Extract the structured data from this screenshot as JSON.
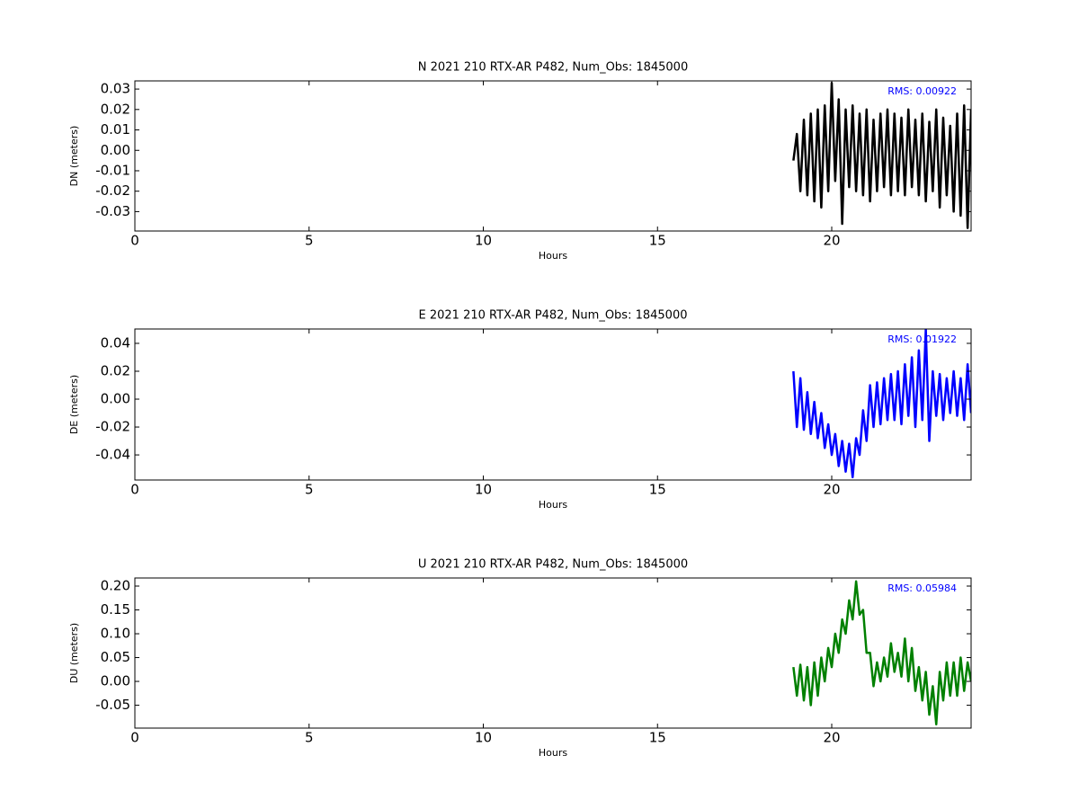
{
  "chart_data": [
    {
      "type": "line",
      "title": "N 2021 210 RTX-AR  P482, Num_Obs: 1845000",
      "x_label": "Hours",
      "y_label": "DN (meters)",
      "annotation": "RMS:  0.00922",
      "annotation_color": "#0000ff",
      "color": "#000000",
      "xlim": [
        0,
        24
      ],
      "xticks": [
        0,
        5,
        10,
        15,
        20
      ],
      "ylim": [
        -0.0395,
        0.034
      ],
      "yticks": [
        -0.03,
        -0.02,
        -0.01,
        {
          "value": 0,
          "label": "0.00"
        },
        0.01,
        0.02,
        0.03
      ],
      "x": [
        18.9,
        19.0,
        19.1,
        19.2,
        19.3,
        19.4,
        19.5,
        19.6,
        19.7,
        19.8,
        19.9,
        20.0,
        20.1,
        20.2,
        20.3,
        20.4,
        20.5,
        20.6,
        20.7,
        20.8,
        20.9,
        21.0,
        21.1,
        21.2,
        21.3,
        21.4,
        21.5,
        21.6,
        21.7,
        21.8,
        21.9,
        22.0,
        22.1,
        22.2,
        22.3,
        22.4,
        22.5,
        22.6,
        22.7,
        22.8,
        22.9,
        23.0,
        23.1,
        23.2,
        23.3,
        23.4,
        23.5,
        23.6,
        23.7,
        23.8,
        23.9,
        24.0
      ],
      "values": [
        -0.005,
        0.008,
        -0.02,
        0.015,
        -0.022,
        0.018,
        -0.025,
        0.02,
        -0.028,
        0.022,
        -0.02,
        0.033,
        -0.015,
        0.025,
        -0.036,
        0.02,
        -0.018,
        0.022,
        -0.02,
        0.018,
        -0.022,
        0.02,
        -0.025,
        0.015,
        -0.02,
        0.018,
        -0.018,
        0.02,
        -0.022,
        0.018,
        -0.02,
        0.016,
        -0.022,
        0.02,
        -0.018,
        0.015,
        -0.022,
        0.018,
        -0.025,
        0.014,
        -0.02,
        0.02,
        -0.028,
        0.016,
        -0.022,
        0.012,
        -0.03,
        0.018,
        -0.032,
        0.022,
        -0.038,
        0.02
      ]
    },
    {
      "type": "line",
      "title": "E 2021 210 RTX-AR  P482, Num_Obs: 1845000",
      "x_label": "Hours",
      "y_label": "DE (meters)",
      "annotation": "RMS:  0.01922",
      "annotation_color": "#0000ff",
      "color": "#0000ff",
      "xlim": [
        0,
        24
      ],
      "xticks": [
        0,
        5,
        10,
        15,
        20
      ],
      "ylim": [
        -0.058,
        0.0503
      ],
      "yticks": [
        -0.04,
        -0.02,
        {
          "value": 0,
          "label": "0.00"
        },
        0.02,
        0.04
      ],
      "x": [
        18.9,
        19.0,
        19.1,
        19.2,
        19.3,
        19.4,
        19.5,
        19.6,
        19.7,
        19.8,
        19.9,
        20.0,
        20.1,
        20.2,
        20.3,
        20.4,
        20.5,
        20.6,
        20.7,
        20.8,
        20.9,
        21.0,
        21.1,
        21.2,
        21.3,
        21.4,
        21.5,
        21.6,
        21.7,
        21.8,
        21.9,
        22.0,
        22.1,
        22.2,
        22.3,
        22.4,
        22.5,
        22.6,
        22.7,
        22.8,
        22.9,
        23.0,
        23.1,
        23.2,
        23.3,
        23.4,
        23.5,
        23.6,
        23.7,
        23.8,
        23.9,
        24.0
      ],
      "values": [
        0.02,
        -0.02,
        0.015,
        -0.022,
        0.005,
        -0.025,
        -0.002,
        -0.028,
        -0.01,
        -0.035,
        -0.018,
        -0.04,
        -0.025,
        -0.048,
        -0.03,
        -0.052,
        -0.032,
        -0.056,
        -0.028,
        -0.04,
        -0.008,
        -0.03,
        0.01,
        -0.02,
        0.012,
        -0.018,
        0.015,
        -0.015,
        0.018,
        -0.015,
        0.02,
        -0.018,
        0.025,
        -0.012,
        0.03,
        -0.02,
        0.035,
        -0.015,
        0.05,
        -0.03,
        0.02,
        -0.012,
        0.018,
        -0.015,
        0.015,
        -0.01,
        0.02,
        -0.012,
        0.015,
        -0.015,
        0.025,
        -0.01
      ]
    },
    {
      "type": "line",
      "title": "U 2021 210 RTX-AR  P482, Num_Obs: 1845000",
      "x_label": "Hours",
      "y_label": "DU (meters)",
      "annotation": "RMS:  0.05984",
      "annotation_color": "#0000ff",
      "color": "#008000",
      "xlim": [
        0,
        24
      ],
      "xticks": [
        0,
        5,
        10,
        15,
        20
      ],
      "ylim": [
        -0.098,
        0.217
      ],
      "yticks": [
        -0.05,
        {
          "value": 0,
          "label": "0.00"
        },
        0.05,
        {
          "value": 0.1,
          "label": "0.10"
        },
        0.15,
        {
          "value": 0.2,
          "label": "0.20"
        }
      ],
      "x": [
        18.9,
        19.0,
        19.1,
        19.2,
        19.3,
        19.4,
        19.5,
        19.6,
        19.7,
        19.8,
        19.9,
        20.0,
        20.1,
        20.2,
        20.3,
        20.4,
        20.5,
        20.6,
        20.7,
        20.8,
        20.9,
        21.0,
        21.1,
        21.2,
        21.3,
        21.4,
        21.5,
        21.6,
        21.7,
        21.8,
        21.9,
        22.0,
        22.1,
        22.2,
        22.3,
        22.4,
        22.5,
        22.6,
        22.7,
        22.8,
        22.9,
        23.0,
        23.1,
        23.2,
        23.3,
        23.4,
        23.5,
        23.6,
        23.7,
        23.8,
        23.9,
        24.0
      ],
      "values": [
        0.03,
        -0.03,
        0.035,
        -0.04,
        0.03,
        -0.05,
        0.04,
        -0.03,
        0.05,
        0.0,
        0.07,
        0.03,
        0.1,
        0.06,
        0.13,
        0.1,
        0.17,
        0.13,
        0.21,
        0.14,
        0.15,
        0.06,
        0.06,
        -0.01,
        0.04,
        0.0,
        0.05,
        0.01,
        0.08,
        0.02,
        0.06,
        0.01,
        0.09,
        0.0,
        0.07,
        -0.02,
        0.03,
        -0.04,
        0.02,
        -0.07,
        -0.01,
        -0.09,
        0.02,
        -0.04,
        0.04,
        -0.03,
        0.04,
        -0.03,
        0.05,
        -0.02,
        0.04,
        0.0
      ]
    }
  ]
}
